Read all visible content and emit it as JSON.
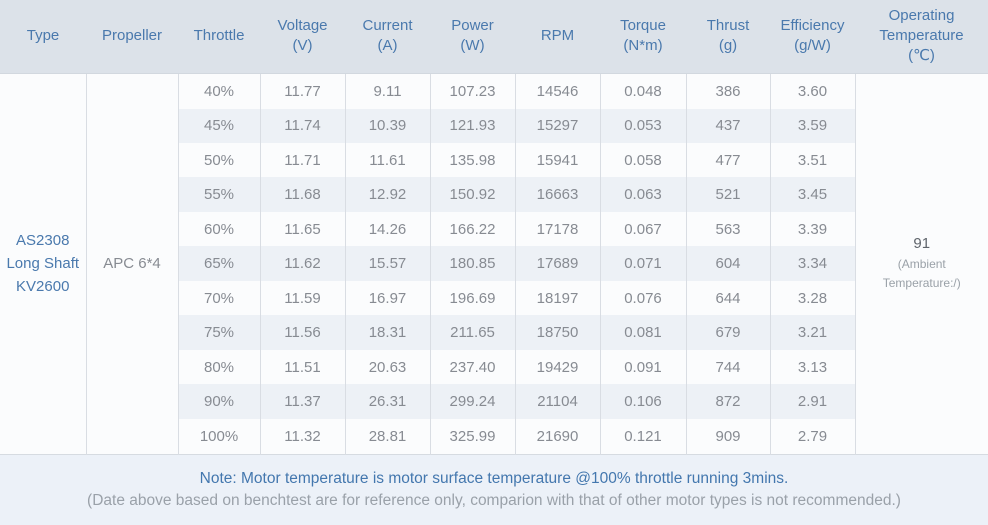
{
  "table": {
    "headers": [
      {
        "label": "Type",
        "unit": ""
      },
      {
        "label": "Propeller",
        "unit": ""
      },
      {
        "label": "Throttle",
        "unit": ""
      },
      {
        "label": "Voltage",
        "unit": "(V)"
      },
      {
        "label": "Current",
        "unit": "(A)"
      },
      {
        "label": "Power",
        "unit": "(W)"
      },
      {
        "label": "RPM",
        "unit": ""
      },
      {
        "label": "Torque",
        "unit": "(N*m)"
      },
      {
        "label": "Thrust",
        "unit": "(g)"
      },
      {
        "label": "Efficiency",
        "unit": "(g/W)"
      },
      {
        "label": "Operating Temperature",
        "unit": "(℃)"
      }
    ],
    "merged": {
      "type": {
        "lines": [
          "AS2308",
          "Long Shaft",
          "KV2600"
        ]
      },
      "propeller": "APC 6*4",
      "operating_temperature": {
        "value": "91",
        "note": "(Ambient Temperature:/)"
      }
    },
    "rows": [
      {
        "throttle": "40%",
        "voltage": "11.77",
        "current": "9.11",
        "power": "107.23",
        "rpm": "14546",
        "torque": "0.048",
        "thrust": "386",
        "efficiency": "3.60"
      },
      {
        "throttle": "45%",
        "voltage": "11.74",
        "current": "10.39",
        "power": "121.93",
        "rpm": "15297",
        "torque": "0.053",
        "thrust": "437",
        "efficiency": "3.59"
      },
      {
        "throttle": "50%",
        "voltage": "11.71",
        "current": "11.61",
        "power": "135.98",
        "rpm": "15941",
        "torque": "0.058",
        "thrust": "477",
        "efficiency": "3.51"
      },
      {
        "throttle": "55%",
        "voltage": "11.68",
        "current": "12.92",
        "power": "150.92",
        "rpm": "16663",
        "torque": "0.063",
        "thrust": "521",
        "efficiency": "3.45"
      },
      {
        "throttle": "60%",
        "voltage": "11.65",
        "current": "14.26",
        "power": "166.22",
        "rpm": "17178",
        "torque": "0.067",
        "thrust": "563",
        "efficiency": "3.39"
      },
      {
        "throttle": "65%",
        "voltage": "11.62",
        "current": "15.57",
        "power": "180.85",
        "rpm": "17689",
        "torque": "0.071",
        "thrust": "604",
        "efficiency": "3.34"
      },
      {
        "throttle": "70%",
        "voltage": "11.59",
        "current": "16.97",
        "power": "196.69",
        "rpm": "18197",
        "torque": "0.076",
        "thrust": "644",
        "efficiency": "3.28"
      },
      {
        "throttle": "75%",
        "voltage": "11.56",
        "current": "18.31",
        "power": "211.65",
        "rpm": "18750",
        "torque": "0.081",
        "thrust": "679",
        "efficiency": "3.21"
      },
      {
        "throttle": "80%",
        "voltage": "11.51",
        "current": "20.63",
        "power": "237.40",
        "rpm": "19429",
        "torque": "0.091",
        "thrust": "744",
        "efficiency": "3.13"
      },
      {
        "throttle": "90%",
        "voltage": "11.37",
        "current": "26.31",
        "power": "299.24",
        "rpm": "21104",
        "torque": "0.106",
        "thrust": "872",
        "efficiency": "2.91"
      },
      {
        "throttle": "100%",
        "voltage": "11.32",
        "current": "28.81",
        "power": "325.99",
        "rpm": "21690",
        "torque": "0.121",
        "thrust": "909",
        "efficiency": "2.79"
      }
    ]
  },
  "notes": {
    "line1": "Note: Motor temperature is motor surface temperature @100% throttle running 3mins.",
    "line2": "(Date above based on benchtest are for reference only, comparion with that of other motor types is not recommended.)"
  },
  "colors": {
    "header_bg": "#dce2e9",
    "accent_blue": "#4a79ad",
    "row_tint": "#edf1f6",
    "merged_cell_bg": "#edf0f5",
    "data_text": "#878b92",
    "footer_bg": "#ecf1f8"
  }
}
